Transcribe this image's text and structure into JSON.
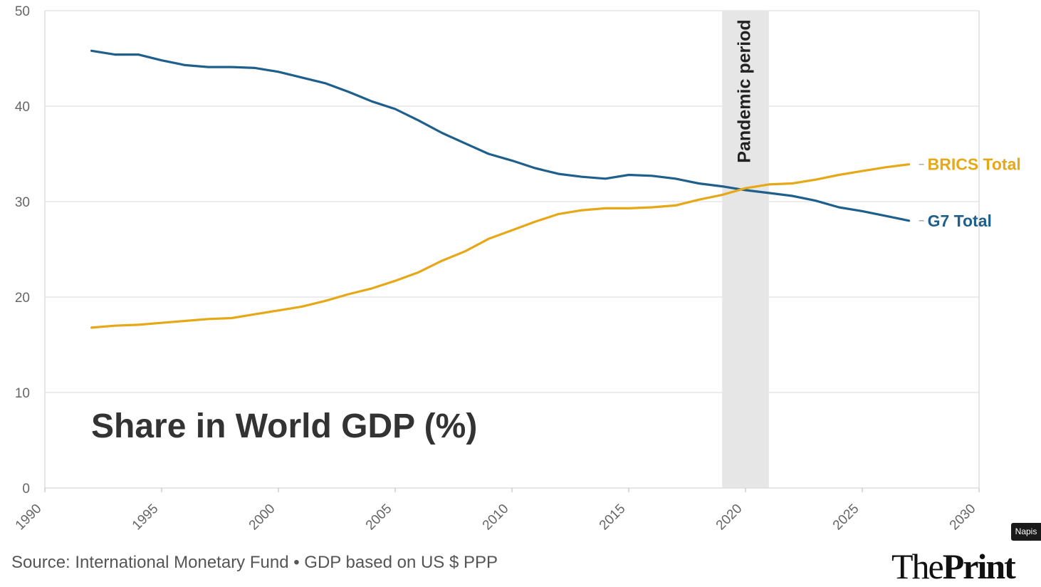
{
  "chart_data": {
    "type": "line",
    "title": "Share in World GDP (%)",
    "xlim": [
      1990,
      2030
    ],
    "ylim": [
      0,
      50
    ],
    "x_ticks": [
      1990,
      1995,
      2000,
      2005,
      2010,
      2015,
      2020,
      2025,
      2030
    ],
    "y_ticks": [
      0,
      10,
      20,
      30,
      40,
      50
    ],
    "grid": "horizontal",
    "x": [
      1992,
      1993,
      1994,
      1995,
      1996,
      1997,
      1998,
      1999,
      2000,
      2001,
      2002,
      2003,
      2004,
      2005,
      2006,
      2007,
      2008,
      2009,
      2010,
      2011,
      2012,
      2013,
      2014,
      2015,
      2016,
      2017,
      2018,
      2019,
      2020,
      2021,
      2022,
      2023,
      2024,
      2025,
      2026,
      2027
    ],
    "series": [
      {
        "name": "G7 Total",
        "color": "#1f5f8b",
        "values": [
          45.8,
          45.4,
          45.4,
          44.8,
          44.3,
          44.1,
          44.1,
          44.0,
          43.6,
          43.0,
          42.4,
          41.5,
          40.5,
          39.7,
          38.5,
          37.2,
          36.1,
          35.0,
          34.3,
          33.5,
          32.9,
          32.6,
          32.4,
          32.8,
          32.7,
          32.4,
          31.9,
          31.6,
          31.2,
          30.9,
          30.6,
          30.1,
          29.4,
          29.0,
          28.5,
          28.0
        ]
      },
      {
        "name": "BRICS Total",
        "color": "#e6a817",
        "values": [
          16.8,
          17.0,
          17.1,
          17.3,
          17.5,
          17.7,
          17.8,
          18.2,
          18.6,
          19.0,
          19.6,
          20.3,
          20.9,
          21.7,
          22.6,
          23.8,
          24.8,
          26.1,
          27.0,
          27.9,
          28.7,
          29.1,
          29.3,
          29.3,
          29.4,
          29.6,
          30.2,
          30.7,
          31.4,
          31.8,
          31.9,
          32.3,
          32.8,
          33.2,
          33.6,
          33.9
        ]
      }
    ],
    "annotations": [
      {
        "label": "Pandemic period",
        "x_start": 2019,
        "x_end": 2021,
        "color": "#e6e6e6"
      }
    ]
  },
  "footer": {
    "source": "Source: International Monetary Fund • GDP based on US $ PPP"
  },
  "logo": {
    "the": "The",
    "print": "Print"
  },
  "badge": {
    "label": "Napis"
  }
}
